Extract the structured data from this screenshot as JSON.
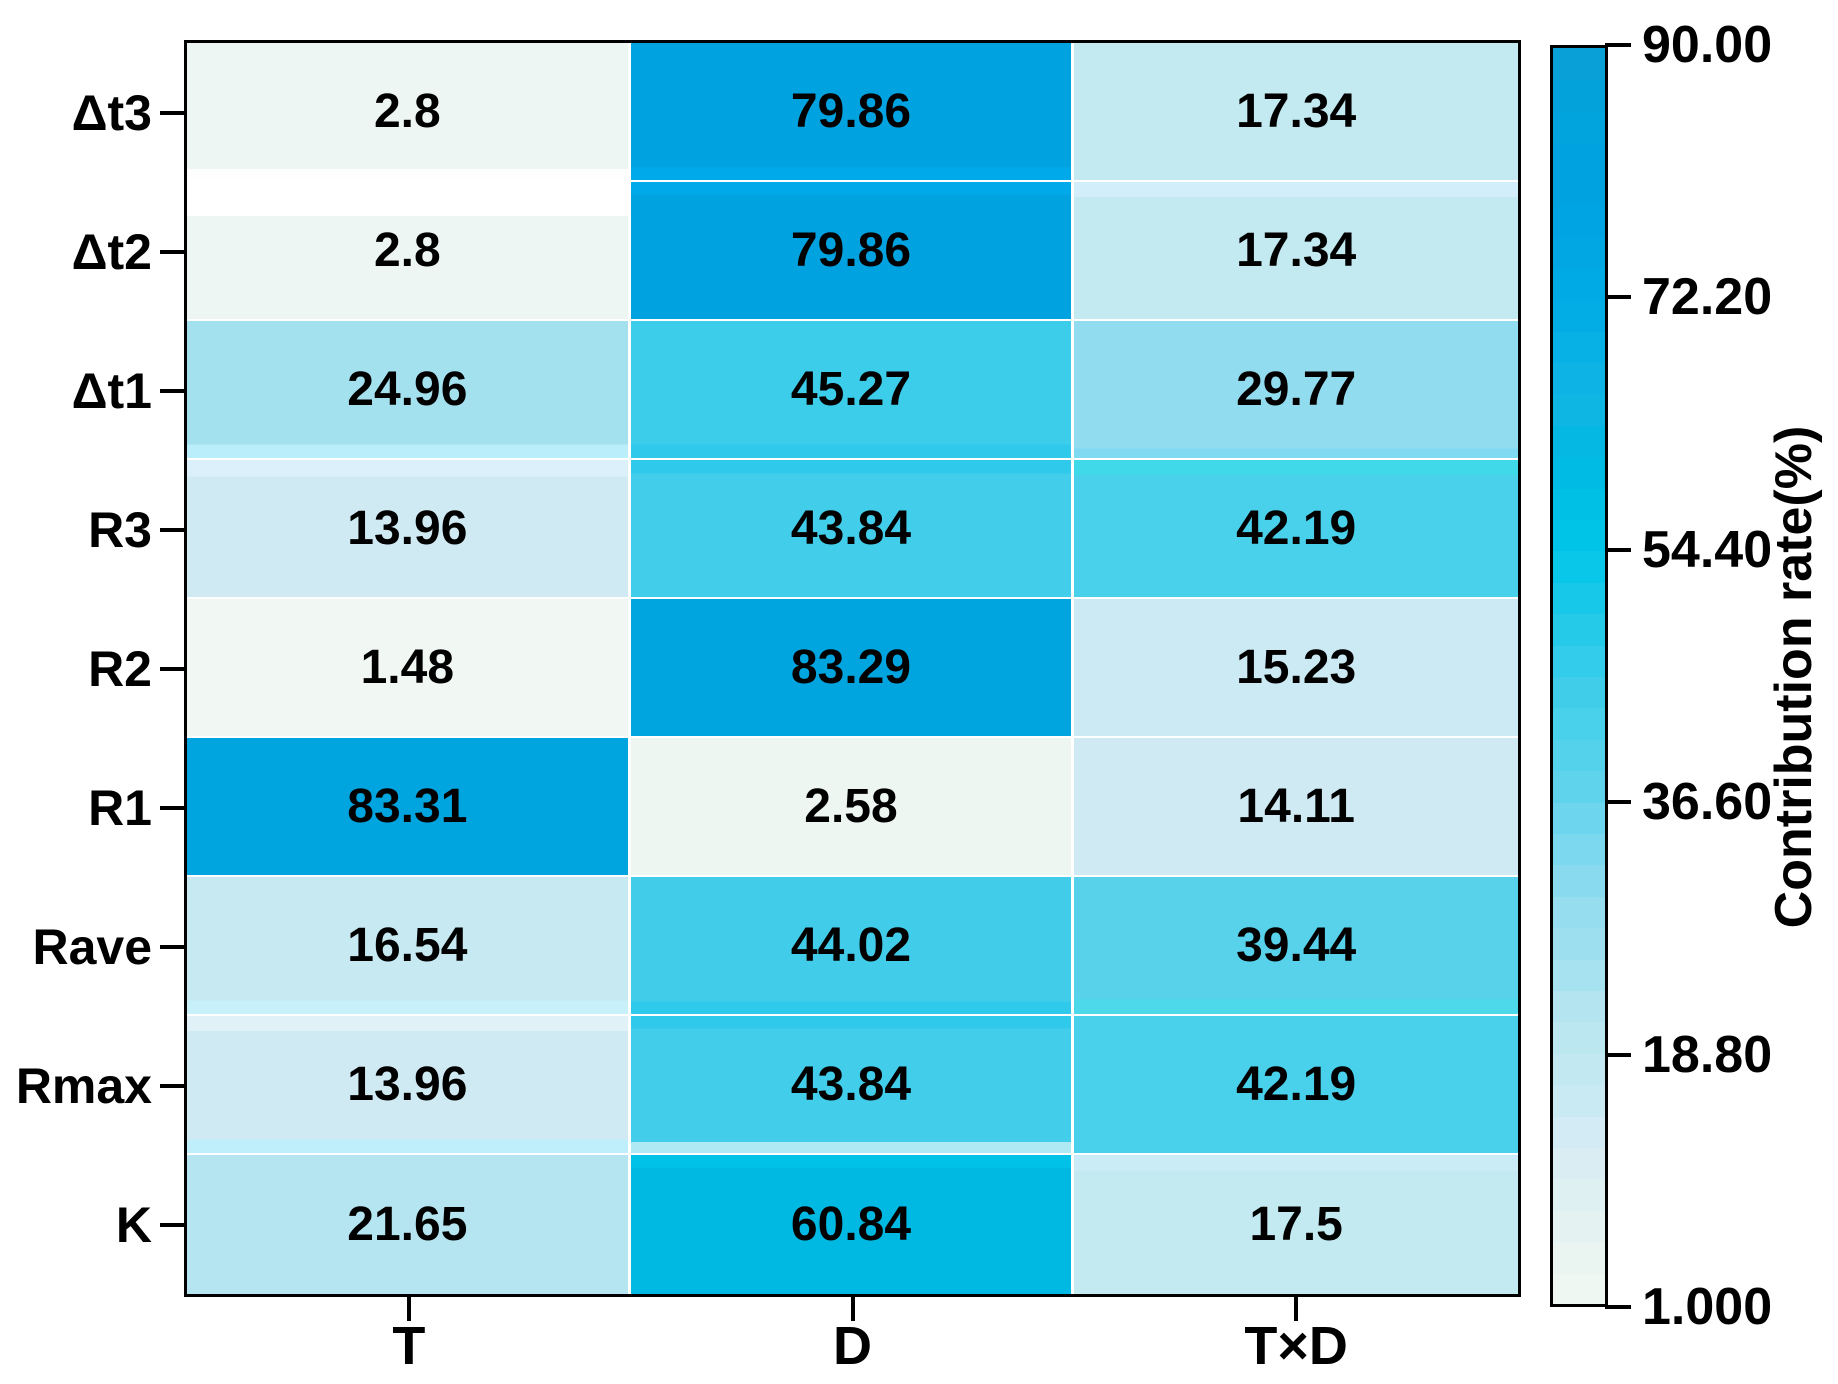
{
  "chart_data": {
    "type": "heatmap",
    "title": "",
    "rows": [
      "Δt3",
      "Δt2",
      "Δt1",
      "R3",
      "R2",
      "R1",
      "Rave",
      "Rmax",
      "K"
    ],
    "columns": [
      "T",
      "D",
      "T×D"
    ],
    "values": [
      [
        2.8,
        79.86,
        17.34
      ],
      [
        2.8,
        79.86,
        17.34
      ],
      [
        24.96,
        45.27,
        29.77
      ],
      [
        13.96,
        43.84,
        42.19
      ],
      [
        1.48,
        83.29,
        15.23
      ],
      [
        83.31,
        2.58,
        14.11
      ],
      [
        16.54,
        44.02,
        39.44
      ],
      [
        13.96,
        43.84,
        42.19
      ],
      [
        21.65,
        60.84,
        17.5
      ]
    ],
    "cell_labels": [
      [
        "2.8",
        "79.86",
        "17.34"
      ],
      [
        "2.8",
        "79.86",
        "17.34"
      ],
      [
        "24.96",
        "45.27",
        "29.77"
      ],
      [
        "13.96",
        "43.84",
        "42.19"
      ],
      [
        "1.48",
        "83.29",
        "15.23"
      ],
      [
        "83.31",
        "2.58",
        "14.11"
      ],
      [
        "16.54",
        "44.02",
        "39.44"
      ],
      [
        "13.96",
        "43.84",
        "42.19"
      ],
      [
        "21.65",
        "60.84",
        "17.5"
      ]
    ],
    "colorbar": {
      "label": "Contribution rate(%)",
      "min": 1.0,
      "max": 90.0,
      "ticks": [
        {
          "label": "90.00",
          "value": 90
        },
        {
          "label": "72.20",
          "value": 72.2
        },
        {
          "label": "54.40",
          "value": 54.4
        },
        {
          "label": "36.60",
          "value": 36.6
        },
        {
          "label": "18.80",
          "value": 18.8
        },
        {
          "label": "1.000",
          "value": 1
        }
      ]
    },
    "colormap_stops": [
      [
        1,
        "#f2f8f4"
      ],
      [
        2.8,
        "#edf6f2"
      ],
      [
        6,
        "#e7f3f2"
      ],
      [
        10,
        "#dceef3"
      ],
      [
        14,
        "#d0eaf4"
      ],
      [
        17.4,
        "#c3e9f1"
      ],
      [
        21.7,
        "#b5e5f0"
      ],
      [
        25,
        "#a3e1ef"
      ],
      [
        29.8,
        "#92dcef"
      ],
      [
        33,
        "#7ed8ee"
      ],
      [
        36.6,
        "#66d4ec"
      ],
      [
        40,
        "#55d2eb"
      ],
      [
        42.2,
        "#49d1eb"
      ],
      [
        44,
        "#41cdea"
      ],
      [
        45.3,
        "#3bcdea"
      ],
      [
        50,
        "#1ec9e9"
      ],
      [
        54.4,
        "#00c6e8"
      ],
      [
        58,
        "#00bfe6"
      ],
      [
        60.8,
        "#00b9e3"
      ],
      [
        65,
        "#0fb5e3"
      ],
      [
        72.2,
        "#00abe6"
      ],
      [
        76,
        "#00a6e3"
      ],
      [
        80,
        "#00a2e0"
      ],
      [
        84,
        "#00a4de"
      ],
      [
        90,
        "#0a9fd5"
      ]
    ],
    "edge_bands": [
      {
        "r": 0,
        "c": 0,
        "side": "b",
        "color": "#fdfefd",
        "h": 8
      },
      {
        "r": 1,
        "c": 0,
        "side": "t",
        "color": "#ffffff",
        "h": 25
      },
      {
        "r": 0,
        "c": 1,
        "side": "b",
        "color": "#00a9ea",
        "h": 9
      },
      {
        "r": 1,
        "c": 1,
        "side": "t",
        "color": "#00a9ea",
        "h": 9
      },
      {
        "r": 1,
        "c": 2,
        "side": "t",
        "color": "#d2eefb",
        "h": 11
      },
      {
        "r": 2,
        "c": 0,
        "side": "b",
        "color": "#b9eefa",
        "h": 10
      },
      {
        "r": 3,
        "c": 0,
        "side": "t",
        "color": "#dcf0fb",
        "h": 12
      },
      {
        "r": 2,
        "c": 1,
        "side": "b",
        "color": "#2fc9ec",
        "h": 10
      },
      {
        "r": 3,
        "c": 1,
        "side": "t",
        "color": "#2fc9ec",
        "h": 10
      },
      {
        "r": 2,
        "c": 2,
        "side": "b",
        "color": "#7fdaf1",
        "h": 7
      },
      {
        "r": 3,
        "c": 2,
        "side": "t",
        "color": "#3fd9ea",
        "h": 11
      },
      {
        "r": 6,
        "c": 0,
        "side": "b",
        "color": "#c7f0fa",
        "h": 10
      },
      {
        "r": 7,
        "c": 0,
        "side": "t",
        "color": "#e1f1f8",
        "h": 11
      },
      {
        "r": 6,
        "c": 1,
        "side": "b",
        "color": "#2fc9ec",
        "h": 9
      },
      {
        "r": 7,
        "c": 1,
        "side": "t",
        "color": "#2fc9ec",
        "h": 9
      },
      {
        "r": 6,
        "c": 2,
        "side": "b",
        "color": "#4dd9e9",
        "h": 11
      },
      {
        "r": 7,
        "c": 0,
        "side": "b",
        "color": "#bfeffa",
        "h": 10
      },
      {
        "r": 7,
        "c": 1,
        "side": "b",
        "color": "#aee9f4",
        "h": 8
      },
      {
        "r": 8,
        "c": 1,
        "side": "t",
        "color": "#00c2e8",
        "h": 9
      },
      {
        "r": 8,
        "c": 2,
        "side": "t",
        "color": "#c9ecf6",
        "h": 12
      }
    ],
    "layout": {
      "grid": "off",
      "legend_position": "right-colorbar",
      "cell_gridline_color": "#ffffff"
    }
  }
}
